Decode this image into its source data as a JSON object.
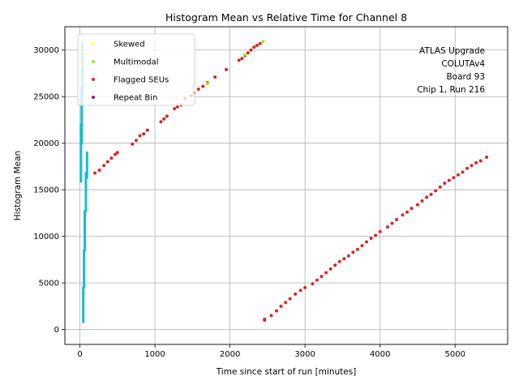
{
  "chart_data": {
    "type": "scatter",
    "title": "Histogram Mean vs Relative Time for Channel 8",
    "xlabel": "Time since start of run [minutes]",
    "ylabel": "Histogram Mean",
    "xlim": [
      -200,
      5700
    ],
    "ylim": [
      -1600,
      32500
    ],
    "xticks": [
      0,
      1000,
      2000,
      3000,
      4000,
      5000
    ],
    "yticks": [
      0,
      5000,
      10000,
      15000,
      20000,
      25000,
      30000
    ],
    "grid": true,
    "legend_position": "upper-left",
    "annotation": [
      "ATLAS Upgrade",
      "COLUTAv4",
      "Board 93",
      "Chip 1, Run 216"
    ],
    "colors": {
      "skewed": "#ffff66",
      "multimodal": "#99ee11",
      "flagged": "#d62728",
      "repeat": "#7b1fa2",
      "main": "#17becf"
    },
    "series": [
      {
        "name": "Skewed",
        "color": "#ffff66",
        "x": [
          50,
          55,
          60
        ],
        "y": [
          31000,
          30800,
          29500
        ]
      },
      {
        "name": "Multimodal",
        "color": "#99ee11",
        "x": [
          2440,
          1700,
          2200,
          40
        ],
        "y": [
          30900,
          26400,
          29500,
          28500
        ]
      },
      {
        "name": "Flagged SEUs",
        "color": "#d62728",
        "x": [
          200,
          260,
          320,
          370,
          420,
          470,
          500,
          700,
          750,
          800,
          850,
          900,
          1080,
          1120,
          1160,
          1260,
          1300,
          1350,
          1400,
          1480,
          1520,
          1580,
          1640,
          1700,
          1800,
          1950,
          2120,
          2160,
          2200,
          2240,
          2280,
          2320,
          2360,
          2400,
          2460,
          2460,
          2550,
          2620,
          2680,
          2740,
          2800,
          2870,
          2940,
          3000,
          3100,
          3160,
          3220,
          3280,
          3340,
          3400,
          3460,
          3520,
          3580,
          3640,
          3700,
          3760,
          3820,
          3880,
          3940,
          4000,
          4100,
          4160,
          4220,
          4300,
          4360,
          4420,
          4500,
          4560,
          4620,
          4680,
          4740,
          4800,
          4860,
          4920,
          4980,
          5040,
          5100,
          5160,
          5220,
          5280,
          5340,
          5420
        ],
        "y": [
          16800,
          17100,
          17600,
          18000,
          18400,
          18800,
          19000,
          19900,
          20300,
          20800,
          21000,
          21400,
          22300,
          22600,
          22900,
          23700,
          23900,
          24100,
          24800,
          25100,
          25400,
          25800,
          26100,
          26500,
          27100,
          27900,
          28900,
          29100,
          29400,
          29700,
          30000,
          30300,
          30500,
          30700,
          1000,
          1100,
          1500,
          2000,
          2500,
          2900,
          3300,
          3800,
          4200,
          4500,
          4900,
          5300,
          5700,
          6100,
          6500,
          6900,
          7300,
          7600,
          7900,
          8300,
          8600,
          9000,
          9400,
          9800,
          10100,
          10500,
          11000,
          11400,
          11800,
          12300,
          12600,
          13000,
          13400,
          13800,
          14200,
          14500,
          14900,
          15300,
          15700,
          16000,
          16300,
          16600,
          16900,
          17300,
          17600,
          17900,
          18100,
          18500
        ]
      },
      {
        "name": "Repeat Bin",
        "color": "#7b1fa2",
        "x": [],
        "y": []
      },
      {
        "name": "",
        "color": "#17becf",
        "segments": [
          {
            "x": 15,
            "y0": 15900,
            "y1": 22000
          },
          {
            "x": 25,
            "y0": 20000,
            "y1": 26000
          },
          {
            "x": 35,
            "y0": 25000,
            "y1": 31000
          },
          {
            "x": 45,
            "y0": 800,
            "y1": 4500
          },
          {
            "x": 55,
            "y0": 4500,
            "y1": 8500
          },
          {
            "x": 65,
            "y0": 8500,
            "y1": 12700
          },
          {
            "x": 80,
            "y0": 12700,
            "y1": 16800
          },
          {
            "x": 95,
            "y0": 16300,
            "y1": 19000
          }
        ]
      }
    ]
  }
}
